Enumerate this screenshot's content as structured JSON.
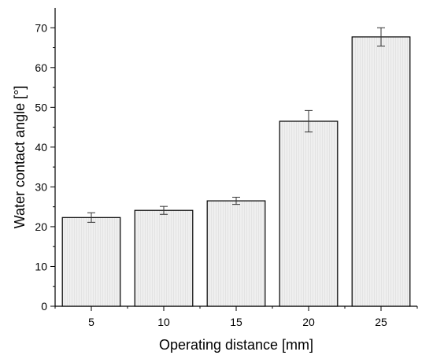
{
  "chart_data": {
    "type": "bar",
    "title": "",
    "xlabel": "Operating distance [mm]",
    "ylabel": "Water contact angle [°]",
    "categories": [
      "5",
      "10",
      "15",
      "20",
      "25"
    ],
    "values": [
      22.3,
      24.1,
      26.5,
      46.5,
      67.7
    ],
    "errors": [
      1.2,
      1.0,
      0.9,
      2.7,
      2.3
    ],
    "ylim": [
      0,
      75
    ],
    "yticks": [
      0,
      10,
      20,
      30,
      40,
      50,
      60,
      70
    ],
    "grid": false,
    "bar_fill": "#eeeeee",
    "bar_stroke": "#000000"
  }
}
